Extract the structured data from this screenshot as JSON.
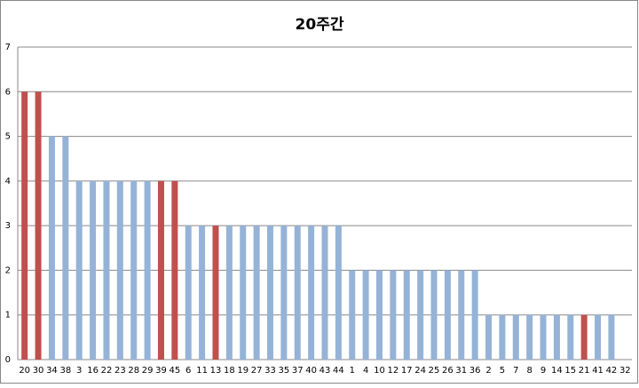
{
  "chart_data": {
    "type": "bar",
    "title": "20주간",
    "categories": [
      "20",
      "30",
      "34",
      "38",
      "3",
      "16",
      "22",
      "23",
      "28",
      "29",
      "39",
      "45",
      "6",
      "11",
      "13",
      "18",
      "19",
      "27",
      "33",
      "35",
      "37",
      "40",
      "43",
      "44",
      "1",
      "4",
      "10",
      "12",
      "17",
      "24",
      "25",
      "26",
      "31",
      "36",
      "2",
      "5",
      "7",
      "8",
      "9",
      "14",
      "15",
      "21",
      "41",
      "42",
      "32"
    ],
    "values": [
      6,
      6,
      5,
      5,
      4,
      4,
      4,
      4,
      4,
      4,
      4,
      4,
      3,
      3,
      3,
      3,
      3,
      3,
      3,
      3,
      3,
      3,
      3,
      3,
      2,
      2,
      2,
      2,
      2,
      2,
      2,
      2,
      2,
      2,
      1,
      1,
      1,
      1,
      1,
      1,
      1,
      1,
      1,
      1,
      0
    ],
    "colors": [
      "#c0504d",
      "#c0504d",
      "#95b3d7",
      "#95b3d7",
      "#95b3d7",
      "#95b3d7",
      "#95b3d7",
      "#95b3d7",
      "#95b3d7",
      "#95b3d7",
      "#c0504d",
      "#c0504d",
      "#95b3d7",
      "#95b3d7",
      "#c0504d",
      "#95b3d7",
      "#95b3d7",
      "#95b3d7",
      "#95b3d7",
      "#95b3d7",
      "#95b3d7",
      "#95b3d7",
      "#95b3d7",
      "#95b3d7",
      "#95b3d7",
      "#95b3d7",
      "#95b3d7",
      "#95b3d7",
      "#95b3d7",
      "#95b3d7",
      "#95b3d7",
      "#95b3d7",
      "#95b3d7",
      "#95b3d7",
      "#95b3d7",
      "#95b3d7",
      "#95b3d7",
      "#95b3d7",
      "#95b3d7",
      "#95b3d7",
      "#95b3d7",
      "#c0504d",
      "#95b3d7",
      "#95b3d7",
      "#95b3d7"
    ],
    "ylim": [
      0,
      7
    ],
    "yticks": [
      0,
      1,
      2,
      3,
      4,
      5,
      6,
      7
    ],
    "grid": true
  }
}
